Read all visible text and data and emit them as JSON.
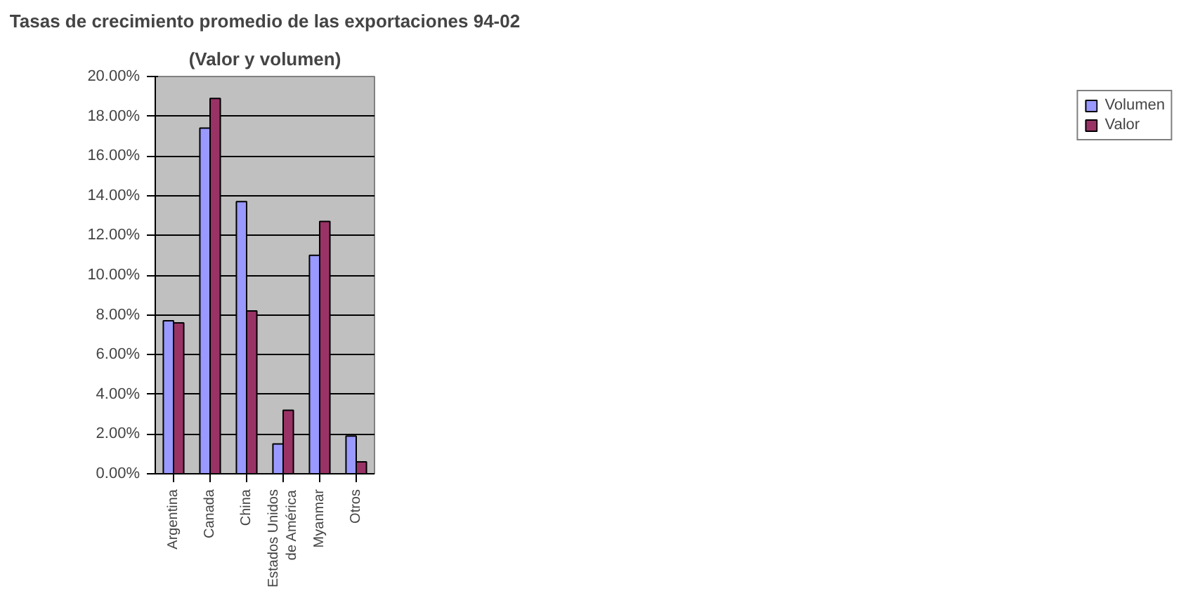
{
  "chart_data": {
    "type": "bar",
    "title": "Tasas de crecimiento promedio de las exportaciones 94-02",
    "subtitle": "(Valor y volumen)",
    "categories": [
      "Argentina",
      "Canada",
      "China",
      "Estados Unidos\nde América",
      "Myanmar",
      "Otros"
    ],
    "series": [
      {
        "name": "Volumen",
        "color": "#9999ff",
        "values": [
          7.7,
          17.4,
          13.7,
          1.5,
          11.0,
          1.9
        ]
      },
      {
        "name": "Valor",
        "color": "#993366",
        "values": [
          7.6,
          18.9,
          8.2,
          3.2,
          12.7,
          0.6
        ]
      }
    ],
    "ylim": [
      0,
      20
    ],
    "yticks": [
      {
        "value": 0,
        "label": "0.00%"
      },
      {
        "value": 2,
        "label": "2.00%"
      },
      {
        "value": 4,
        "label": "4.00%"
      },
      {
        "value": 6,
        "label": "6.00%"
      },
      {
        "value": 8,
        "label": "8.00%"
      },
      {
        "value": 10,
        "label": "10.00%"
      },
      {
        "value": 12,
        "label": "12.00%"
      },
      {
        "value": 14,
        "label": "14.00%"
      },
      {
        "value": 16,
        "label": "16.00%"
      },
      {
        "value": 18,
        "label": "18.00%"
      },
      {
        "value": 20,
        "label": "20.00%"
      }
    ],
    "grid": "y",
    "legend": "right"
  }
}
